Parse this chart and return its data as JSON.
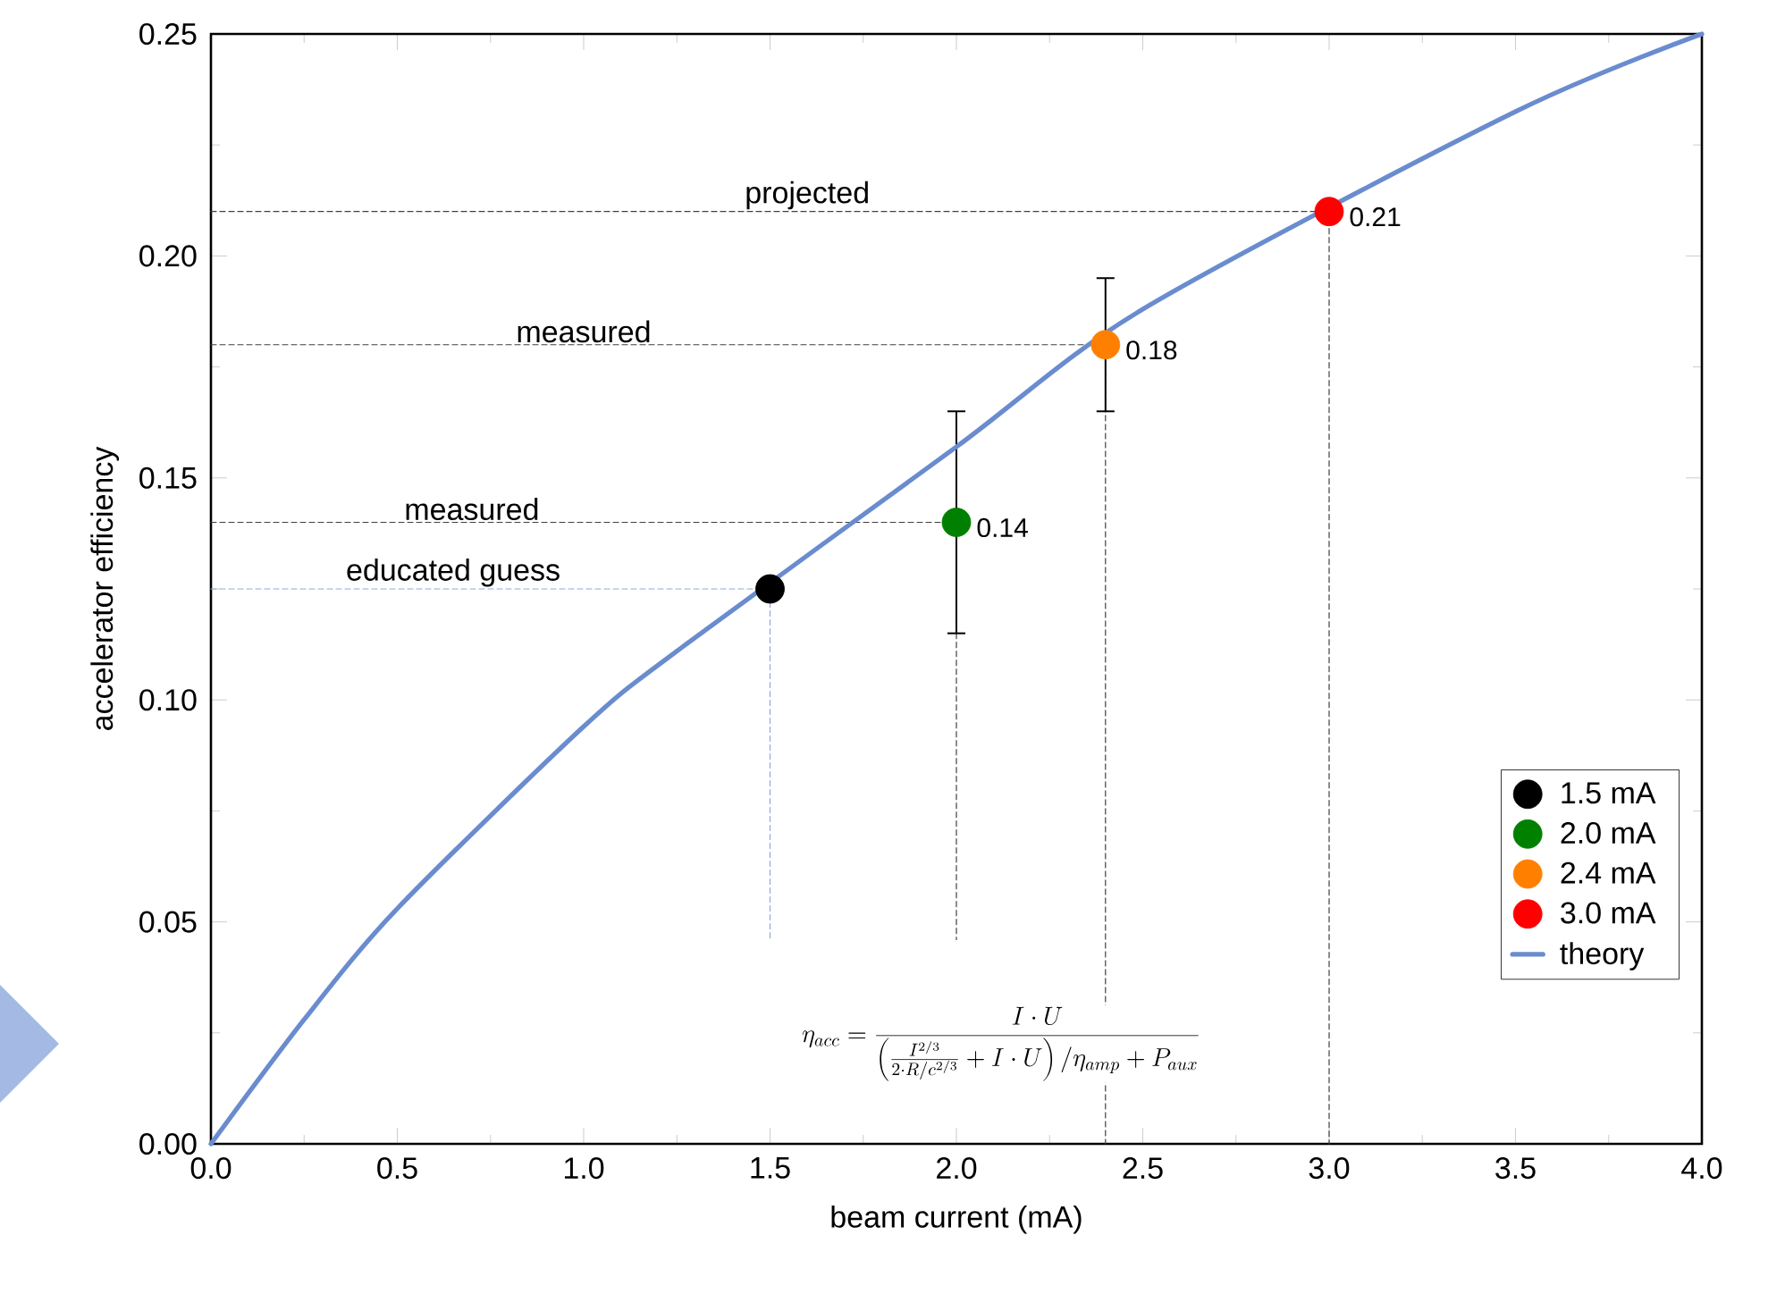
{
  "chart_data": {
    "type": "scatter",
    "xlabel": "beam current (mA)",
    "ylabel": "accelerator efficiency",
    "xlim": [
      0,
      4
    ],
    "ylim": [
      0,
      0.25
    ],
    "xticks": [
      {
        "value": 0,
        "label": "0.0"
      },
      0.5,
      {
        "value": 1,
        "label": "1.0"
      },
      1.5,
      {
        "value": 2,
        "label": "2.0"
      },
      2.5,
      {
        "value": 3,
        "label": "3.0"
      },
      3.5,
      {
        "value": 4,
        "label": "4.0"
      }
    ],
    "yticks": [
      {
        "value": 0,
        "label": "0.00"
      },
      0.05,
      {
        "value": 0.1,
        "label": "0.10"
      },
      0.15,
      {
        "value": 0.2,
        "label": "0.20"
      },
      0.25
    ],
    "legend": "bottom right",
    "grid": false,
    "series": [
      {
        "type": "line",
        "color": "#8eaadb",
        "line_style": "dashed",
        "marker": "none",
        "x": [
          0,
          1.5,
          1.5
        ],
        "values": [
          0.125,
          0.125,
          0.046
        ]
      },
      {
        "type": "line",
        "color": "#404040",
        "line_style": "dashed",
        "marker": "none",
        "x": [
          0,
          2.0
        ],
        "values": [
          0.14,
          0.14
        ]
      },
      {
        "type": "line",
        "color": "#404040",
        "line_style": "dashed",
        "marker": "none",
        "x": [
          2.0,
          2.0
        ],
        "values": [
          0.115,
          0.046
        ]
      },
      {
        "type": "line",
        "color": "#404040",
        "line_style": "dashed",
        "marker": "none",
        "x": [
          0,
          2.4,
          2.4
        ],
        "values": [
          0.18,
          0.18,
          0
        ]
      },
      {
        "type": "line",
        "color": "#404040",
        "line_style": "dashed",
        "marker": "none",
        "x": [
          0,
          3.0,
          3.0
        ],
        "values": [
          0.21,
          0.21,
          0
        ]
      },
      {
        "name": "1.5 mA",
        "marker": "circle",
        "color": "#000000",
        "x": [
          1.5
        ],
        "values": [
          0.125
        ],
        "value_labels": [
          null
        ]
      },
      {
        "name": "2.0 mA",
        "marker": "circle",
        "color": "#008000",
        "x": [
          2.0
        ],
        "values": [
          0.14
        ],
        "errors": [
          [
            0.115,
            0.165
          ]
        ],
        "value_labels": [
          "0.14"
        ]
      },
      {
        "name": "2.4 mA",
        "marker": "circle",
        "color": "#ff8000",
        "x": [
          2.4
        ],
        "values": [
          0.18
        ],
        "errors": [
          [
            0.165,
            0.195
          ]
        ],
        "value_labels": [
          "0.18"
        ]
      },
      {
        "name": "3.0 mA",
        "marker": "circle",
        "color": "#ff0000",
        "x": [
          3.0
        ],
        "values": [
          0.21
        ],
        "value_labels": [
          "0.21"
        ]
      },
      {
        "type": "line",
        "name": "theory",
        "color": "#6a8ccf",
        "line_style": "solid",
        "marker": "none",
        "x": [
          0,
          0.25,
          0.5,
          1.0,
          1.25,
          2.0,
          2.5,
          3.5,
          4.0
        ],
        "values": [
          0,
          0.028,
          0.053,
          0.094,
          0.111,
          0.157,
          0.188,
          0.2325,
          0.25
        ]
      }
    ],
    "annotations": [
      {
        "text": "projected",
        "x": 1.6,
        "y": 0.21
      },
      {
        "text": "measured",
        "x": 1.0,
        "y": 0.18
      },
      {
        "text": "measured",
        "x": 0.7,
        "y": 0.14
      },
      {
        "text": "educated guess",
        "x": 0.65,
        "y": 0.125
      },
      "\\eta_{acc}=\\frac{I\\cdot U}{\\left(\\frac{I^{2/3}}{2\\cdot R/c^{2/3}}+I\\cdot U\\right)/\\eta_{amp}+P_{aux}}"
    ]
  }
}
